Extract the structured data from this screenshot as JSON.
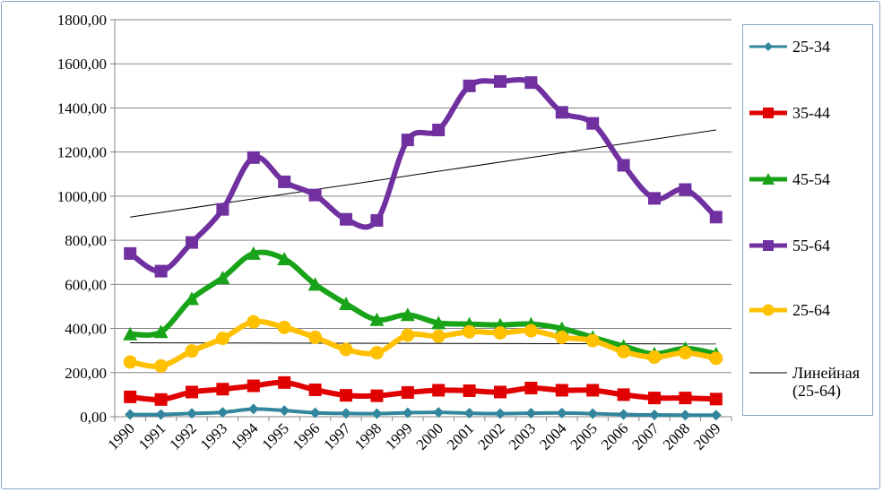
{
  "chart_data": {
    "type": "line",
    "title": "",
    "xlabel": "",
    "ylabel": "",
    "ylim": [
      0,
      1800
    ],
    "yticks": [
      "0,00",
      "200,00",
      "400,00",
      "600,00",
      "800,00",
      "1000,00",
      "1200,00",
      "1400,00",
      "1600,00",
      "1800,00"
    ],
    "categories": [
      "1990",
      "1991",
      "1992",
      "1993",
      "1994",
      "1995",
      "1996",
      "1997",
      "1998",
      "1999",
      "2000",
      "2001",
      "2002",
      "2003",
      "2004",
      "2005",
      "2006",
      "2007",
      "2008",
      "2009"
    ],
    "grid": true,
    "legend_position": "right",
    "series": [
      {
        "name": "25-34",
        "color": "#31859c",
        "marker": "diamond",
        "values": [
          10,
          10,
          15,
          20,
          35,
          28,
          18,
          15,
          14,
          18,
          20,
          16,
          14,
          16,
          17,
          14,
          10,
          8,
          7,
          7
        ]
      },
      {
        "name": "35-44",
        "color": "#e00000",
        "marker": "square",
        "values": [
          90,
          78,
          112,
          125,
          140,
          155,
          122,
          97,
          95,
          110,
          120,
          118,
          112,
          130,
          120,
          120,
          100,
          85,
          85,
          80
        ]
      },
      {
        "name": "45-54",
        "color": "#18a318",
        "marker": "triangle",
        "values": [
          375,
          385,
          535,
          630,
          740,
          715,
          600,
          512,
          440,
          462,
          425,
          420,
          416,
          420,
          400,
          360,
          320,
          285,
          310,
          285
        ]
      },
      {
        "name": "55-64",
        "color": "#7030a0",
        "marker": "square",
        "values": [
          740,
          660,
          790,
          940,
          1175,
          1065,
          1005,
          895,
          890,
          1255,
          1300,
          1500,
          1520,
          1515,
          1380,
          1330,
          1140,
          990,
          1030,
          905
        ]
      },
      {
        "name": "25-64",
        "color": "#ffc000",
        "marker": "circle",
        "values": [
          248,
          230,
          298,
          355,
          430,
          405,
          360,
          305,
          290,
          370,
          365,
          385,
          380,
          390,
          360,
          345,
          295,
          270,
          290,
          265
        ]
      }
    ],
    "trendlines": [
      {
        "name": "Линейная\n(25-64)",
        "color": "#000000",
        "start": 905,
        "end": 1300
      }
    ],
    "extra_lines": [
      {
        "color": "#000000",
        "start": 335,
        "end": 330
      }
    ]
  }
}
